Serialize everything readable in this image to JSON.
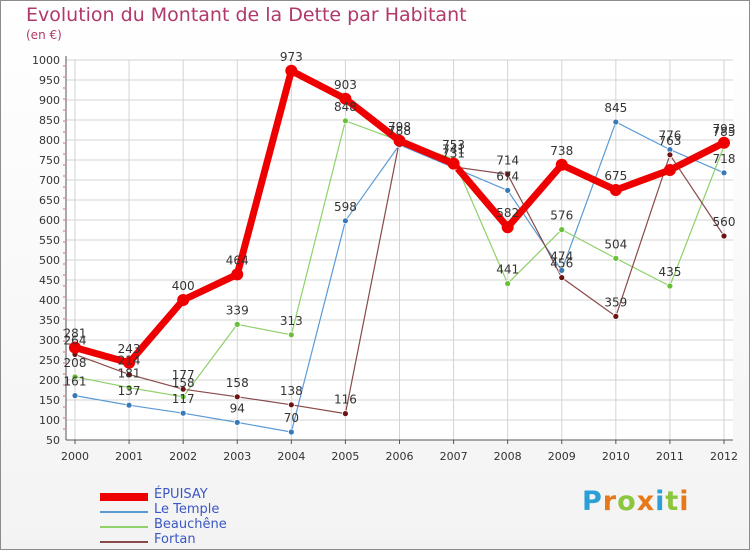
{
  "title": "Evolution du Montant de la Dette par Habitant",
  "subtitle": "(en €)",
  "logo": {
    "letters": [
      "P",
      "r",
      "o",
      "x",
      "i",
      "t",
      "i"
    ],
    "colors": [
      "#2a9fd8",
      "#e8791b",
      "#8cc63f",
      "#e8791b",
      "#2a9fd8",
      "#8cc63f",
      "#e8791b"
    ]
  },
  "chart_data": {
    "type": "line",
    "x": [
      2000,
      2001,
      2002,
      2003,
      2004,
      2005,
      2006,
      2007,
      2008,
      2009,
      2010,
      2011,
      2012
    ],
    "ylim": [
      50,
      1000
    ],
    "yticks": [
      50,
      100,
      150,
      200,
      250,
      300,
      350,
      400,
      450,
      500,
      550,
      600,
      650,
      700,
      750,
      800,
      850,
      900,
      950,
      1000
    ],
    "grid": true,
    "legend_position": "bottom-left",
    "series": [
      {
        "name": "Le Temple",
        "color": "#5b9bd5",
        "marker": "#3a79b8",
        "values": [
          161,
          137,
          117,
          94,
          70,
          598,
          788,
          731,
          674,
          474,
          845,
          776,
          718
        ],
        "labels": [
          "161",
          "137",
          "117",
          "94",
          "70",
          "598",
          "788",
          "731",
          "674",
          "474",
          "845",
          "776",
          "718"
        ]
      },
      {
        "name": "Beauchêne",
        "color": "#8fd16a",
        "marker": "#6abf3a",
        "values": [
          208,
          181,
          158,
          339,
          313,
          848,
          798,
          753,
          441,
          576,
          504,
          435,
          785
        ],
        "labels": [
          "208",
          "181",
          "158",
          "339",
          "313",
          "848",
          "798",
          "753",
          "441",
          "576",
          "504",
          "435",
          "785"
        ]
      },
      {
        "name": "Fortan",
        "color": "#8a4a4a",
        "marker": "#6b1414",
        "values": [
          264,
          214,
          177,
          158,
          138,
          116,
          798,
          733,
          714,
          456,
          359,
          763,
          560
        ],
        "labels": [
          "264",
          "214",
          "177",
          "158",
          "138",
          "116",
          "",
          "",
          "714",
          "456",
          "359",
          "763",
          "560"
        ]
      },
      {
        "name": "ÉPUISAY",
        "color": "#ee0000",
        "marker": "#ee0000",
        "values": [
          281,
          243,
          400,
          464,
          973,
          903,
          798,
          741,
          582,
          738,
          675,
          725,
          793
        ],
        "labels": [
          "281",
          "243",
          "400",
          "464",
          "973",
          "903",
          "",
          "741",
          "582",
          "738",
          "675",
          "",
          "793"
        ]
      }
    ]
  }
}
